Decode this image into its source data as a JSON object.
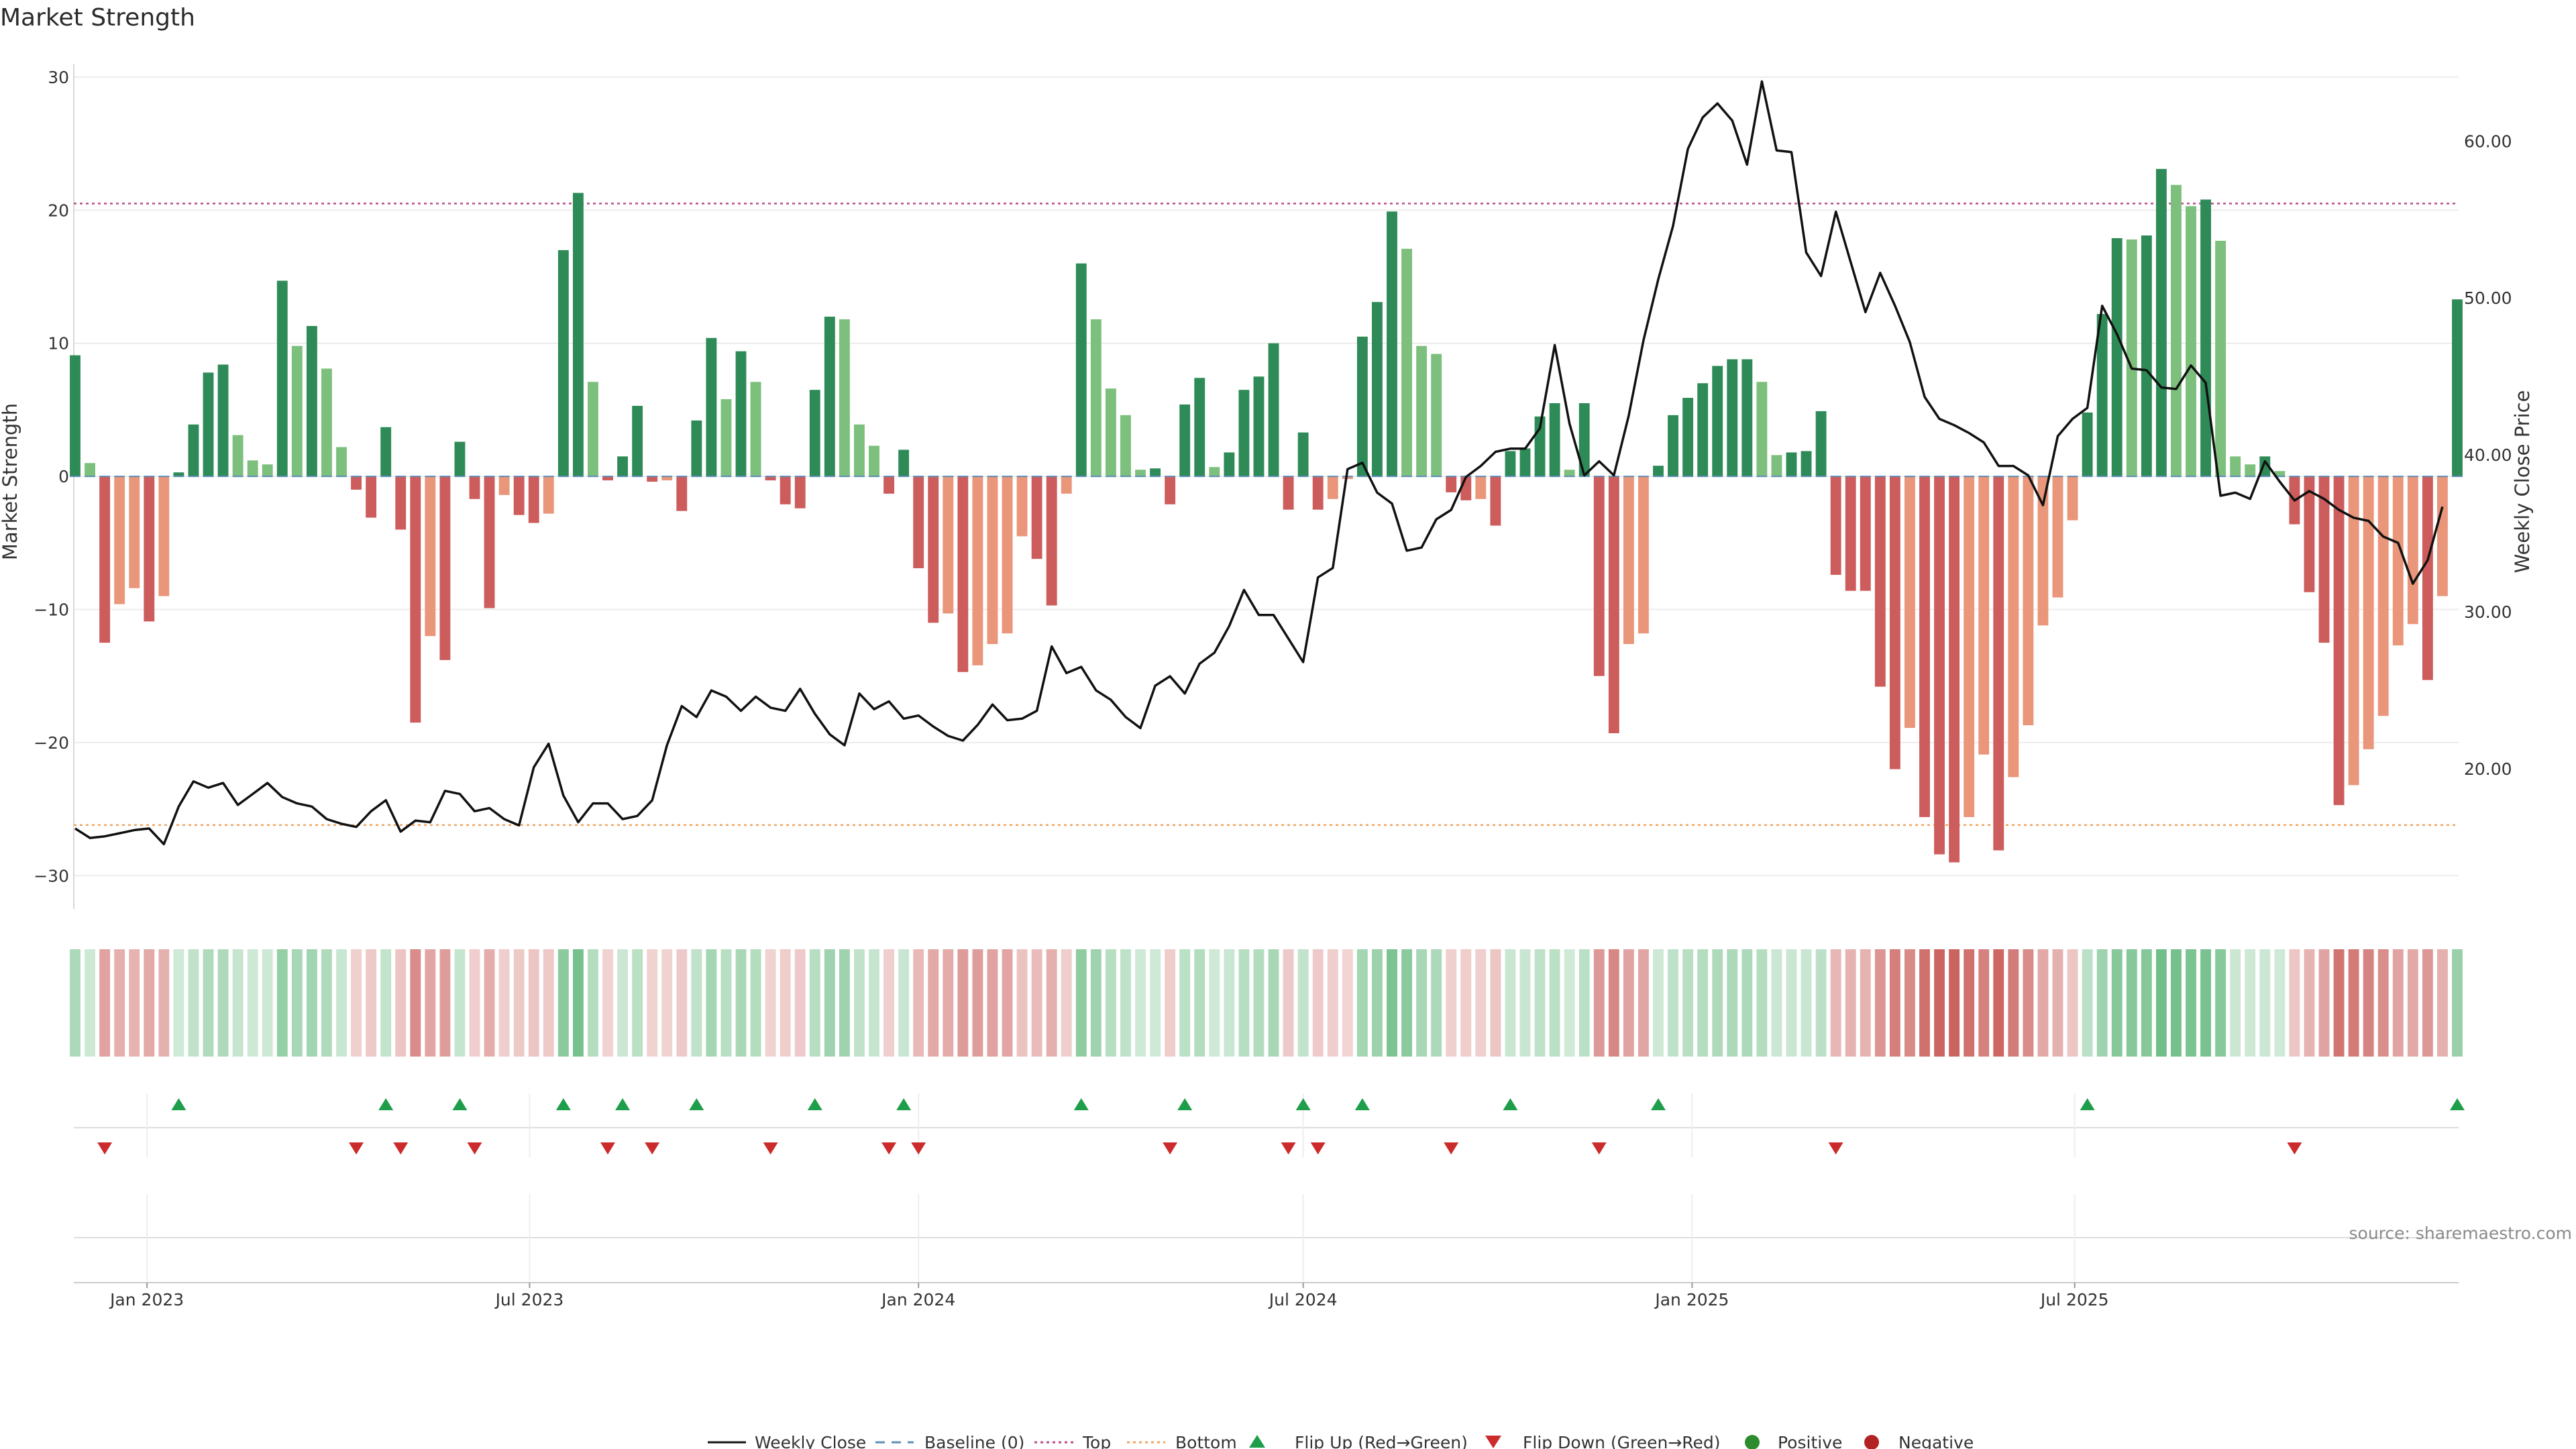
{
  "chart_data": {
    "type": "bar",
    "title": "Market Strength",
    "ylabel": "Market Strength",
    "y2label": "Weekly Close Price",
    "ylim": [
      -32,
      30.5
    ],
    "y2lim": [
      11.5,
      64.5
    ],
    "yticks": [
      "30",
      "20",
      "10",
      "0",
      "−10",
      "−20",
      "−30"
    ],
    "ytick_values": [
      30,
      20,
      10,
      0,
      -10,
      -20,
      -30
    ],
    "y2ticks": [
      "60.00",
      "50.00",
      "40.00",
      "30.00",
      "20.00"
    ],
    "y2tick_values": [
      60,
      50,
      40,
      30,
      20
    ],
    "x_start": "2022-11-28",
    "x_step_days": 7,
    "xticks": [
      "Jan 2023",
      "Jul 2023",
      "Jan 2024",
      "Jul 2024",
      "Jan 2025",
      "Jul 2025"
    ],
    "xtick_dates": [
      "2023-01-01",
      "2023-07-01",
      "2024-01-01",
      "2024-07-01",
      "2025-01-01",
      "2025-07-01"
    ],
    "top_line": 20.5,
    "bottom_line": -26.2,
    "strength": [
      9.1,
      1.0,
      -12.5,
      -9.6,
      -8.4,
      -10.9,
      -9.0,
      0.3,
      3.9,
      7.8,
      8.4,
      3.1,
      1.2,
      0.9,
      14.7,
      9.8,
      11.3,
      8.1,
      2.2,
      -1.0,
      -3.1,
      3.7,
      -4.0,
      -18.5,
      -12.0,
      -13.8,
      2.6,
      -1.7,
      -9.9,
      -1.4,
      -2.9,
      -3.5,
      -2.8,
      17.0,
      21.3,
      7.1,
      -0.3,
      1.5,
      5.3,
      -0.4,
      -0.3,
      -2.6,
      4.2,
      10.4,
      5.8,
      9.4,
      7.1,
      -0.3,
      -2.1,
      -2.4,
      6.5,
      12.0,
      11.8,
      3.9,
      2.3,
      -1.3,
      2.0,
      -6.9,
      -11.0,
      -10.3,
      -14.7,
      -14.2,
      -12.6,
      -11.8,
      -4.5,
      -6.2,
      -9.7,
      -1.3,
      16.0,
      11.8,
      6.6,
      4.6,
      0.5,
      0.6,
      -2.1,
      5.4,
      7.4,
      0.7,
      1.8,
      6.5,
      7.5,
      10.0,
      -2.5,
      3.3,
      -2.5,
      -1.7,
      -0.2,
      10.5,
      13.1,
      19.9,
      17.1,
      9.8,
      9.2,
      -1.2,
      -1.8,
      -1.7,
      -3.7,
      1.9,
      2.1,
      4.5,
      5.5,
      0.5,
      5.5,
      -15.0,
      -19.3,
      -12.6,
      -11.8,
      0.8,
      4.6,
      5.9,
      7.0,
      8.3,
      8.8,
      8.8,
      7.1,
      1.6,
      1.8,
      1.9,
      4.9,
      -7.4,
      -8.6,
      -8.6,
      -15.8,
      -22.0,
      -18.9,
      -25.6,
      -28.4,
      -29.0,
      -25.6,
      -20.9,
      -28.1,
      -22.6,
      -18.7,
      -11.2,
      -9.1,
      -3.3,
      4.8,
      12.2,
      17.9,
      17.8,
      18.1,
      23.1,
      21.9,
      20.3,
      20.8,
      17.7,
      1.5,
      0.9,
      1.5,
      0.4,
      -3.6,
      -8.7,
      -12.5,
      -24.7,
      -23.2,
      -20.5,
      -18.0,
      -12.7,
      -11.1,
      -15.3,
      -9.0,
      13.3
    ],
    "close": [
      16.2,
      15.6,
      15.7,
      15.9,
      16.1,
      16.2,
      15.2,
      17.6,
      19.2,
      18.8,
      19.1,
      17.7,
      18.4,
      19.1,
      18.2,
      17.8,
      17.6,
      16.8,
      16.5,
      16.3,
      17.3,
      18.0,
      16.0,
      16.7,
      16.6,
      18.6,
      18.4,
      17.3,
      17.5,
      16.8,
      16.4,
      20.1,
      21.6,
      18.3,
      16.6,
      17.8,
      17.8,
      16.8,
      17.0,
      18.0,
      21.5,
      24.0,
      23.3,
      25.0,
      24.6,
      23.7,
      24.6,
      23.9,
      23.7,
      25.1,
      23.5,
      22.2,
      21.5,
      24.8,
      23.8,
      24.3,
      23.2,
      23.4,
      22.7,
      22.1,
      21.8,
      22.8,
      24.1,
      23.1,
      23.2,
      23.7,
      27.8,
      26.1,
      26.5,
      25.0,
      24.4,
      23.3,
      22.6,
      25.3,
      25.9,
      24.8,
      26.7,
      27.4,
      29.1,
      31.4,
      29.8,
      29.8,
      28.3,
      26.8,
      32.2,
      32.8,
      39.1,
      39.5,
      37.6,
      36.9,
      33.9,
      34.1,
      35.9,
      36.5,
      38.6,
      39.3,
      40.2,
      40.4,
      40.4,
      41.7,
      47.0,
      42.0,
      38.7,
      39.6,
      38.7,
      42.5,
      47.3,
      51.2,
      54.6,
      59.5,
      61.5,
      62.4,
      61.3,
      58.5,
      63.8,
      59.4,
      59.3,
      52.9,
      51.4,
      55.5,
      52.3,
      49.1,
      51.6,
      49.5,
      47.2,
      43.7,
      42.3,
      41.9,
      41.4,
      40.8,
      39.3,
      39.3,
      38.7,
      36.8,
      41.2,
      42.3,
      43.0,
      49.5,
      47.7,
      45.5,
      45.4,
      44.3,
      44.2,
      45.7,
      44.6,
      37.4,
      37.6,
      37.2,
      39.6,
      38.3,
      37.1,
      37.7,
      37.2,
      36.5,
      36.0,
      35.8,
      34.8,
      34.4,
      31.8,
      33.3,
      36.7
    ]
  },
  "legend": {
    "weekly_close": "Weekly Close",
    "baseline": "Baseline (0)",
    "top": "Top",
    "bottom": "Bottom",
    "flip_up": "Flip Up (Red→Green)",
    "flip_down": "Flip Down (Green→Red)",
    "positive": "Positive",
    "negative": "Negative"
  },
  "source": "source: sharemaestro.com",
  "colors": {
    "pos_strong": "#2e8b57",
    "pos_weak": "#7dbf7d",
    "neg_strong": "#cd5c5c",
    "neg_weak": "#e9967a",
    "top_line": "#b84c8a",
    "bottom_line": "#f0a35e",
    "baseline": "#5b8db8",
    "flip_up": "#1e9e4a",
    "flip_down": "#cc2b2b",
    "positive_dot": "#2e8b2e",
    "negative_dot": "#b22222",
    "close_line": "#111111"
  }
}
